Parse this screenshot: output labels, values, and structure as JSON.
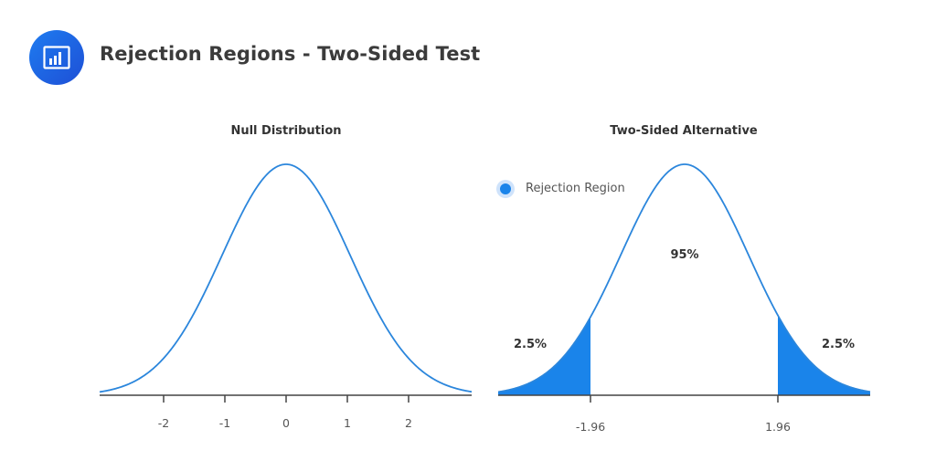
{
  "header": {
    "title": "Rejection Regions - Two-Sided Test",
    "icon": "bar-chart-icon"
  },
  "colors": {
    "curve": "#2b86dc",
    "fill": "#1a84ea",
    "axis": "#444444",
    "icon_bg_start": "#1f7cf0",
    "icon_bg_end": "#1d4fd6"
  },
  "chart_data": [
    {
      "type": "line",
      "title": "Null Distribution",
      "description": "Standard normal density curve",
      "xlabel": "",
      "ylabel": "",
      "x_ticks": [
        -2,
        -1,
        0,
        1,
        2
      ],
      "xlim": [
        -3,
        3
      ],
      "grid": false,
      "series": [
        {
          "name": "Standard normal PDF",
          "x": [
            -3,
            -2.5,
            -2,
            -1.5,
            -1,
            -0.5,
            0,
            0.5,
            1,
            1.5,
            2,
            2.5,
            3
          ],
          "values": [
            0.004,
            0.018,
            0.054,
            0.13,
            0.242,
            0.352,
            0.399,
            0.352,
            0.242,
            0.13,
            0.054,
            0.018,
            0.004
          ]
        }
      ]
    },
    {
      "type": "area",
      "title": "Two-Sided Alternative",
      "xlabel": "",
      "ylabel": "",
      "x_ticks": [
        -1.96,
        1.96
      ],
      "x_tick_labels": [
        "-1.96",
        "1.96"
      ],
      "grid": false,
      "legend": {
        "position": "upper-left",
        "entries": [
          "Rejection Region"
        ]
      },
      "annotations": [
        {
          "text": "2.5%",
          "region": "left tail (x < -1.96)"
        },
        {
          "text": "95%",
          "region": "center (-1.96 to 1.96)"
        },
        {
          "text": "2.5%",
          "region": "right tail (x > 1.96)"
        }
      ],
      "series": [
        {
          "name": "Normal PDF",
          "x": [
            -3,
            -2.5,
            -2,
            -1.5,
            -1,
            -0.5,
            0,
            0.5,
            1,
            1.5,
            2,
            2.5,
            3
          ],
          "values": [
            0.004,
            0.018,
            0.054,
            0.13,
            0.242,
            0.352,
            0.399,
            0.352,
            0.242,
            0.13,
            0.054,
            0.018,
            0.004
          ]
        },
        {
          "name": "Rejection Region",
          "x_ranges": [
            [
              -3,
              -1.96
            ],
            [
              1.96,
              3
            ]
          ],
          "area_each": 0.025
        }
      ]
    }
  ],
  "null_panel": {
    "title": "Null Distribution",
    "ticks": [
      "-2",
      "-1",
      "0",
      "1",
      "2"
    ]
  },
  "alt_panel": {
    "title": "Two-Sided Alternative",
    "legend_label": "Rejection Region",
    "center_label": "95%",
    "left_tail_label": "2.5%",
    "right_tail_label": "2.5%",
    "left_crit": "-1.96",
    "right_crit": "1.96"
  }
}
